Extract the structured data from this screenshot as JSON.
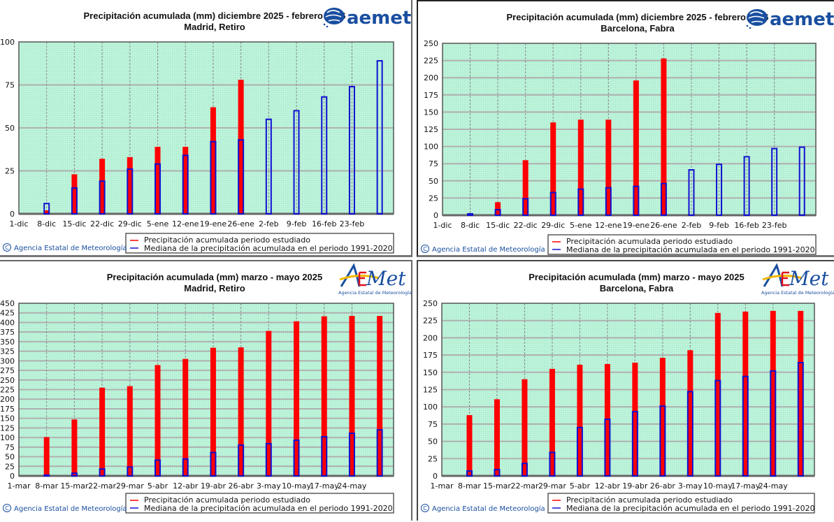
{
  "colors": {
    "observed": "#ff0000",
    "median_outline": "#1010d0",
    "plot_bg": "#b9f2d8",
    "grid": "#b0b0b0",
    "aemet_blue": "#1a4fa0",
    "aemet_yellow": "#f2b800",
    "aemet_red": "#e0141e"
  },
  "legend": {
    "observed": "Precipitación acumulada periodo estudiado",
    "median": "Mediana de la precipitación acumulada en el periodo 1991-2020"
  },
  "credit": "Agencia Estatal de Meteorología",
  "logos": {
    "old": "aemet",
    "new_word": "AEmet",
    "new_sub": "Agencia Estatal de Meteorología"
  },
  "chart_data": [
    {
      "type": "bar",
      "title": "Precipitación acumulada (mm) diciembre 2025 - febrero 2026",
      "subtitle": "Madrid, Retiro",
      "xlabel": "",
      "ylabel": "",
      "ylim": [
        0,
        100
      ],
      "yticks": [
        0,
        25,
        50,
        75,
        100
      ],
      "grid": true,
      "legend_position": "bottom-right",
      "categories": [
        "1-dic",
        "8-dic",
        "15-dic",
        "22-dic",
        "29-dic",
        "5-ene",
        "12-ene",
        "19-ene",
        "26-ene",
        "2-feb",
        "9-feb",
        "16-feb",
        "23-feb",
        ""
      ],
      "series": [
        {
          "name": "Precipitación acumulada periodo estudiado",
          "values": [
            null,
            2,
            23,
            32,
            33,
            39,
            39,
            62,
            78,
            null,
            null,
            null,
            null,
            null
          ]
        },
        {
          "name": "Mediana de la precipitación acumulada en el periodo 1991-2020",
          "values": [
            null,
            6,
            15,
            19,
            26,
            29,
            34,
            42,
            43,
            55,
            60,
            68,
            74,
            89
          ]
        }
      ]
    },
    {
      "type": "bar",
      "title": "Precipitación acumulada (mm) diciembre 2025 - febrero 2026",
      "subtitle": "Barcelona, Fabra",
      "xlabel": "",
      "ylabel": "",
      "ylim": [
        0,
        250
      ],
      "yticks": [
        0,
        25,
        50,
        75,
        100,
        125,
        150,
        175,
        200,
        225,
        250
      ],
      "grid": true,
      "legend_position": "bottom-right",
      "categories": [
        "1-dic",
        "8-dic",
        "15-dic",
        "22-dic",
        "29-dic",
        "5-ene",
        "12-ene",
        "19-ene",
        "26-ene",
        "2-feb",
        "9-feb",
        "16-feb",
        "23-feb",
        ""
      ],
      "series": [
        {
          "name": "Precipitación acumulada periodo estudiado",
          "values": [
            null,
            0,
            19,
            80,
            135,
            139,
            139,
            196,
            228,
            null,
            null,
            null,
            null,
            null
          ]
        },
        {
          "name": "Mediana de la precipitación acumulada en el periodo 1991-2020",
          "values": [
            null,
            2,
            8,
            24,
            33,
            38,
            40,
            42,
            46,
            66,
            74,
            85,
            97,
            99
          ]
        }
      ]
    },
    {
      "type": "bar",
      "title": "Precipitación acumulada (mm) marzo - mayo 2025",
      "subtitle": "Madrid, Retiro",
      "xlabel": "",
      "ylabel": "",
      "ylim": [
        0,
        450
      ],
      "yticks": [
        0,
        25,
        50,
        75,
        100,
        125,
        150,
        175,
        200,
        225,
        250,
        275,
        300,
        325,
        350,
        375,
        400,
        425,
        450
      ],
      "grid": true,
      "legend_position": "bottom-right",
      "categories": [
        "1-mar",
        "8-mar",
        "15-mar",
        "22-mar",
        "29-mar",
        "5-abr",
        "12-abr",
        "19-abr",
        "26-abr",
        "3-may",
        "10-may",
        "17-may",
        "24-may",
        ""
      ],
      "series": [
        {
          "name": "Precipitación acumulada periodo estudiado",
          "values": [
            null,
            101,
            147,
            230,
            234,
            289,
            305,
            334,
            335,
            378,
            403,
            416,
            417,
            417
          ]
        },
        {
          "name": "Mediana de la precipitación acumulada en el periodo 1991-2020",
          "values": [
            null,
            2,
            7,
            18,
            23,
            41,
            44,
            61,
            80,
            84,
            93,
            102,
            111,
            120
          ]
        }
      ]
    },
    {
      "type": "bar",
      "title": "Precipitación acumulada (mm) marzo - mayo 2025",
      "subtitle": "Barcelona, Fabra",
      "xlabel": "",
      "ylabel": "",
      "ylim": [
        0,
        250
      ],
      "yticks": [
        0,
        25,
        50,
        75,
        100,
        125,
        150,
        175,
        200,
        225,
        250
      ],
      "grid": true,
      "legend_position": "bottom-right",
      "categories": [
        "1-mar",
        "8-mar",
        "15-mar",
        "22-mar",
        "29-mar",
        "5-abr",
        "12-abr",
        "19-abr",
        "26-abr",
        "3-may",
        "10-may",
        "17-may",
        "24-may",
        ""
      ],
      "series": [
        {
          "name": "Precipitación acumulada periodo estudiado",
          "values": [
            null,
            88,
            111,
            140,
            155,
            161,
            162,
            164,
            171,
            182,
            236,
            238,
            239,
            239
          ]
        },
        {
          "name": "Mediana de la precipitación acumulada en el periodo 1991-2020",
          "values": [
            null,
            7,
            9,
            18,
            34,
            70,
            82,
            93,
            101,
            122,
            138,
            144,
            152,
            164
          ]
        }
      ]
    }
  ]
}
